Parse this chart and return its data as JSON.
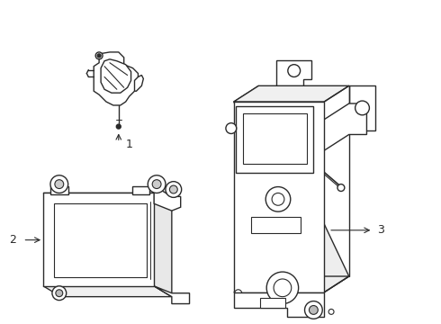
{
  "background_color": "#ffffff",
  "line_color": "#2a2a2a",
  "line_width": 1.0,
  "label_color": "#111111",
  "label_fontsize": 9,
  "fig_width": 4.9,
  "fig_height": 3.6,
  "dpi": 100
}
